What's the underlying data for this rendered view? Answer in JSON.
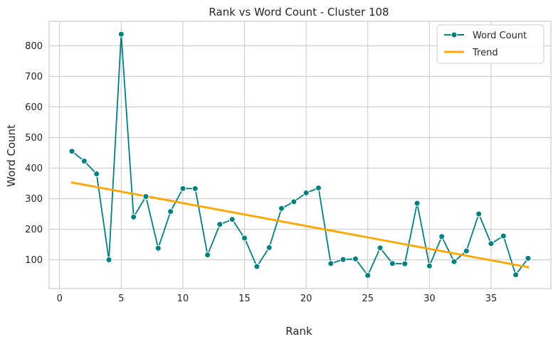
{
  "chart_data": {
    "type": "line",
    "title": "Rank vs Word Count - Cluster 108",
    "xlabel": "Rank",
    "ylabel": "Word Count",
    "xlim": [
      -0.85,
      39.85
    ],
    "ylim": [
      6,
      880
    ],
    "xticks": [
      0,
      5,
      10,
      15,
      20,
      25,
      30,
      35
    ],
    "yticks": [
      100,
      200,
      300,
      400,
      500,
      600,
      700,
      800
    ],
    "grid": true,
    "legend_position": "top-right",
    "series": [
      {
        "name": "Word Count",
        "color": "#008080",
        "marker": "circle",
        "x": [
          1,
          2,
          3,
          4,
          5,
          6,
          7,
          8,
          9,
          10,
          11,
          12,
          13,
          14,
          15,
          16,
          17,
          18,
          19,
          20,
          21,
          22,
          23,
          24,
          25,
          26,
          27,
          28,
          29,
          30,
          31,
          32,
          33,
          34,
          35,
          36,
          37,
          38
        ],
        "values": [
          455,
          423,
          381,
          100,
          838,
          240,
          307,
          138,
          258,
          333,
          333,
          116,
          216,
          232,
          171,
          78,
          140,
          268,
          290,
          319,
          335,
          88,
          101,
          103,
          49,
          139,
          88,
          87,
          285,
          80,
          176,
          94,
          129,
          250,
          153,
          178,
          51,
          105
        ]
      },
      {
        "name": "Trend",
        "color": "#ffa500",
        "x": [
          1,
          38
        ],
        "values": [
          353,
          76
        ]
      }
    ]
  }
}
